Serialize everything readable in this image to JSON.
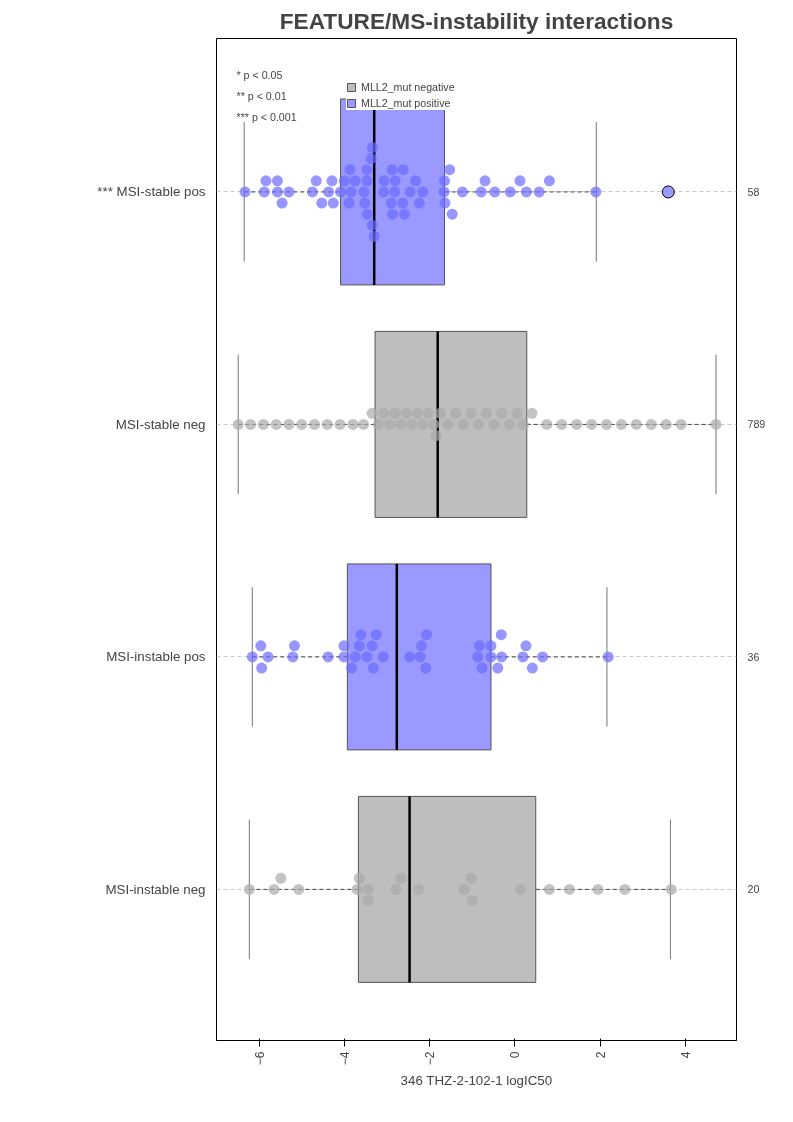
{
  "chart_data": {
    "type": "box",
    "orientation": "horizontal",
    "title": "FEATURE/MS-instability interactions",
    "xlabel": "346 THZ-2-102-1 logIC50",
    "categories": [
      "*** MSI-stable pos",
      "MSI-stable neg",
      "MSI-instable pos",
      "MSI-instable neg"
    ],
    "y2_categories": [
      "58",
      "789",
      "36",
      "20"
    ],
    "xlim": [
      -7.0,
      5.2
    ],
    "xticks": [
      -6,
      -4,
      -2,
      0,
      2,
      4
    ],
    "grid": "y",
    "legend": "top left",
    "marker": "circle",
    "annotations": [
      "* p < 0.05",
      "** p < 0.01",
      "*** p < 0.001"
    ],
    "series": [
      {
        "name": "MLL2_mut negative",
        "color": "#bebebe",
        "type": "box",
        "boxes": [
          null,
          {
            "low": -6.49,
            "q1": -3.28,
            "median": -1.81,
            "q3": 0.28,
            "high": 4.72
          },
          null,
          {
            "low": -6.23,
            "q1": -3.67,
            "median": -2.47,
            "q3": 0.49,
            "high": 3.65
          }
        ]
      },
      {
        "name": "MLL2_mut positive",
        "color": "#9999ff",
        "type": "box",
        "boxes": [
          {
            "low": -6.35,
            "q1": -4.09,
            "median": -3.3,
            "q3": -1.65,
            "high": 1.91,
            "outliers": [
              3.6
            ]
          },
          null,
          {
            "low": -6.16,
            "q1": -3.93,
            "median": -2.77,
            "q3": -0.56,
            "high": 2.16
          },
          null
        ]
      },
      {
        "type": "scatter",
        "color": "#6b6bff",
        "x": [
          "*** MSI-stable pos",
          "*** MSI-stable pos",
          "*** MSI-stable pos",
          "*** MSI-stable pos",
          "*** MSI-stable pos",
          "*** MSI-stable pos",
          "*** MSI-stable pos",
          "*** MSI-stable pos",
          "*** MSI-stable pos",
          "*** MSI-stable pos",
          "*** MSI-stable pos",
          "*** MSI-stable pos",
          "*** MSI-stable pos",
          "*** MSI-stable pos",
          "*** MSI-stable pos",
          "*** MSI-stable pos",
          "*** MSI-stable pos",
          "*** MSI-stable pos",
          "*** MSI-stable pos",
          "*** MSI-stable pos",
          "*** MSI-stable pos",
          "*** MSI-stable pos",
          "*** MSI-stable pos",
          "*** MSI-stable pos",
          "*** MSI-stable pos",
          "*** MSI-stable pos",
          "*** MSI-stable pos",
          "*** MSI-stable pos",
          "*** MSI-stable pos",
          "*** MSI-stable pos",
          "*** MSI-stable pos",
          "*** MSI-stable pos",
          "*** MSI-stable pos",
          "*** MSI-stable pos",
          "*** MSI-stable pos",
          "*** MSI-stable pos",
          "*** MSI-stable pos",
          "*** MSI-stable pos",
          "*** MSI-stable pos",
          "*** MSI-stable pos",
          "*** MSI-stable pos",
          "*** MSI-stable pos",
          "*** MSI-stable pos",
          "*** MSI-stable pos",
          "*** MSI-stable pos",
          "*** MSI-stable pos",
          "*** MSI-stable pos",
          "*** MSI-stable pos",
          "*** MSI-stable pos",
          "*** MSI-stable pos",
          "*** MSI-stable pos",
          "*** MSI-stable pos",
          "*** MSI-stable pos",
          "*** MSI-stable pos",
          "*** MSI-stable pos",
          "*** MSI-stable pos",
          "*** MSI-stable pos"
        ],
        "values": [
          -6.33,
          -5.88,
          -5.84,
          -5.57,
          -5.57,
          -5.46,
          -5.3,
          -4.75,
          -4.66,
          -4.53,
          -4.37,
          -4.29,
          -4.26,
          -4.09,
          -4.0,
          -3.89,
          -3.87,
          -3.84,
          -3.75,
          -3.54,
          -3.52,
          -3.47,
          -3.47,
          -3.46,
          -3.37,
          -3.35,
          -3.34,
          -3.3,
          -3.08,
          -3.07,
          -2.9,
          -2.88,
          -2.87,
          -2.82,
          -2.81,
          -2.63,
          -2.62,
          -2.59,
          -2.46,
          -2.33,
          -2.24,
          -2.16,
          -1.66,
          -1.65,
          -1.64,
          -1.53,
          -1.47,
          -1.23,
          -0.79,
          -0.7,
          -0.47,
          -0.11,
          0.12,
          0.27,
          0.57,
          0.81,
          1.9
        ]
      },
      {
        "type": "scatter",
        "color": "#aaaaaa",
        "x": [
          "MSI-stable neg",
          "MSI-stable neg",
          "MSI-stable neg",
          "MSI-stable neg",
          "MSI-stable neg",
          "MSI-stable neg",
          "MSI-stable neg",
          "MSI-stable neg",
          "MSI-stable neg",
          "MSI-stable neg",
          "MSI-stable neg",
          "MSI-stable neg",
          "MSI-stable neg",
          "MSI-stable neg",
          "MSI-stable neg",
          "MSI-stable neg",
          "MSI-stable neg",
          "MSI-stable neg",
          "MSI-stable neg",
          "MSI-stable neg",
          "MSI-stable neg",
          "MSI-stable neg",
          "MSI-stable neg",
          "MSI-stable neg",
          "MSI-stable neg",
          "MSI-stable neg",
          "MSI-stable neg",
          "MSI-stable neg",
          "MSI-stable neg",
          "MSI-stable neg",
          "MSI-stable neg",
          "MSI-stable neg",
          "MSI-stable neg",
          "MSI-stable neg",
          "MSI-stable neg",
          "MSI-stable neg",
          "MSI-stable neg",
          "MSI-stable neg",
          "MSI-stable neg",
          "MSI-stable neg",
          "MSI-stable neg",
          "MSI-stable neg",
          "MSI-stable neg",
          "MSI-stable neg",
          "MSI-stable neg",
          "MSI-stable neg",
          "MSI-stable neg",
          "MSI-stable neg"
        ],
        "values": [
          -6.49,
          -6.2,
          -5.9,
          -5.6,
          -5.3,
          -5.0,
          -4.7,
          -4.4,
          -4.1,
          -3.8,
          -3.55,
          -3.35,
          -3.2,
          -3.07,
          -2.94,
          -2.81,
          -2.68,
          -2.55,
          -2.42,
          -2.29,
          -2.16,
          -2.03,
          -1.9,
          -1.85,
          -1.75,
          -1.57,
          -1.39,
          -1.21,
          -1.03,
          -0.85,
          -0.67,
          -0.49,
          -0.31,
          -0.13,
          0.05,
          0.2,
          0.4,
          0.75,
          1.1,
          1.45,
          1.8,
          2.15,
          2.5,
          2.85,
          3.2,
          3.55,
          3.9,
          4.72
        ]
      },
      {
        "type": "scatter",
        "color": "#6b6bff",
        "x": [
          "MSI-instable pos",
          "MSI-instable pos",
          "MSI-instable pos",
          "MSI-instable pos",
          "MSI-instable pos",
          "MSI-instable pos",
          "MSI-instable pos",
          "MSI-instable pos",
          "MSI-instable pos",
          "MSI-instable pos",
          "MSI-instable pos",
          "MSI-instable pos",
          "MSI-instable pos",
          "MSI-instable pos",
          "MSI-instable pos",
          "MSI-instable pos",
          "MSI-instable pos",
          "MSI-instable pos",
          "MSI-instable pos",
          "MSI-instable pos",
          "MSI-instable pos",
          "MSI-instable pos",
          "MSI-instable pos",
          "MSI-instable pos",
          "MSI-instable pos",
          "MSI-instable pos",
          "MSI-instable pos",
          "MSI-instable pos",
          "MSI-instable pos",
          "MSI-instable pos",
          "MSI-instable pos",
          "MSI-instable pos",
          "MSI-instable pos",
          "MSI-instable pos",
          "MSI-instable pos",
          "MSI-instable pos"
        ],
        "values": [
          -6.16,
          -5.96,
          -5.94,
          -5.79,
          -5.21,
          -5.17,
          -4.38,
          -4.01,
          -4.01,
          -3.83,
          -3.74,
          -3.65,
          -3.61,
          -3.47,
          -3.35,
          -3.32,
          -3.25,
          -3.09,
          -2.47,
          -2.22,
          -2.19,
          -2.09,
          -2.07,
          -0.87,
          -0.83,
          -0.77,
          -0.56,
          -0.56,
          -0.4,
          -0.32,
          -0.31,
          0.19,
          0.26,
          0.41,
          0.65,
          2.19
        ]
      },
      {
        "type": "scatter",
        "color": "#aaaaaa",
        "x": [
          "MSI-instable neg",
          "MSI-instable neg",
          "MSI-instable neg",
          "MSI-instable neg",
          "MSI-instable neg",
          "MSI-instable neg",
          "MSI-instable neg",
          "MSI-instable neg",
          "MSI-instable neg",
          "MSI-instable neg",
          "MSI-instable neg",
          "MSI-instable neg",
          "MSI-instable neg",
          "MSI-instable neg",
          "MSI-instable neg",
          "MSI-instable neg",
          "MSI-instable neg",
          "MSI-instable neg",
          "MSI-instable neg",
          "MSI-instable neg"
        ],
        "values": [
          -6.23,
          -5.65,
          -5.49,
          -5.07,
          -3.7,
          -3.65,
          -3.44,
          -3.44,
          -2.79,
          -2.67,
          -2.26,
          -1.19,
          -1.02,
          -1.0,
          0.14,
          0.81,
          1.28,
          1.95,
          2.58,
          3.67
        ]
      }
    ]
  }
}
